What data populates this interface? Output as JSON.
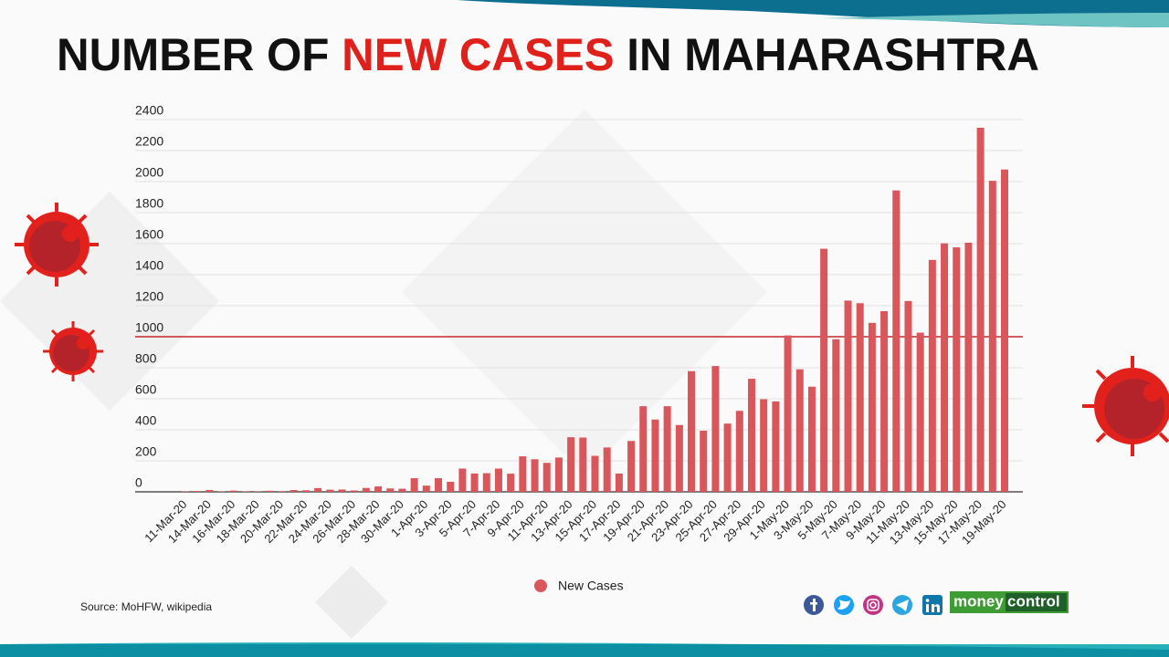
{
  "chart_data": {
    "type": "bar",
    "title_parts": [
      {
        "text": "NUMBER OF ",
        "color": "#111111"
      },
      {
        "text": "NEW CASES",
        "color": "#e0201b"
      },
      {
        "text": " IN MAHARASHTRA",
        "color": "#111111"
      }
    ],
    "categories": [
      "11-Mar-20",
      null,
      "14-Mar-20",
      null,
      "16-Mar-20",
      null,
      "18-Mar-20",
      null,
      "20-Mar-20",
      null,
      "22-Mar-20",
      null,
      "24-Mar-20",
      null,
      "26-Mar-20",
      null,
      "28-Mar-20",
      null,
      "30-Mar-20",
      null,
      "1-Apr-20",
      null,
      "3-Apr-20",
      null,
      "5-Apr-20",
      null,
      "7-Apr-20",
      null,
      "9-Apr-20",
      null,
      "11-Apr-20",
      null,
      "13-Apr-20",
      null,
      "15-Apr-20",
      null,
      "17-Apr-20",
      null,
      "19-Apr-20",
      null,
      "21-Apr-20",
      null,
      "23-Apr-20",
      null,
      "25-Apr-20",
      null,
      "27-Apr-20",
      null,
      "29-Apr-20",
      null,
      "1-May-20",
      null,
      "3-May-20",
      null,
      "5-May-20",
      null,
      "7-May-20",
      null,
      "9-May-20",
      null,
      "11-May-20",
      null,
      "13-May-20",
      null,
      "15-May-20",
      null,
      "17-May-20",
      null,
      "19-May-20"
    ],
    "series": [
      {
        "name": "New Cases",
        "color": "#d9565b",
        "values": [
          3,
          5,
          12,
          3,
          8,
          3,
          3,
          7,
          4,
          12,
          10,
          24,
          14,
          15,
          9,
          25,
          35,
          22,
          20,
          88,
          40,
          88,
          65,
          150,
          118,
          120,
          150,
          117,
          229,
          210,
          187,
          221,
          352,
          350,
          232,
          286,
          118,
          328,
          552,
          466,
          552,
          431,
          778,
          394,
          811,
          440,
          522,
          729,
          597,
          583,
          1008,
          790,
          678,
          1567,
          984,
          1233,
          1216,
          1089,
          1165,
          1943,
          1230,
          1026,
          1495,
          1602,
          1576,
          1606,
          2347,
          2005,
          2078
        ]
      }
    ],
    "ylim": [
      0,
      2400
    ],
    "yticks": [
      0,
      200,
      400,
      600,
      800,
      1000,
      1200,
      1400,
      1600,
      1800,
      2000,
      2200,
      2400
    ],
    "grid": true,
    "reference_line": {
      "value": 1000,
      "color": "#c62828"
    },
    "source": "Source: MoHFW, wikipedia",
    "logo": {
      "left": "money",
      "right": "control"
    }
  }
}
